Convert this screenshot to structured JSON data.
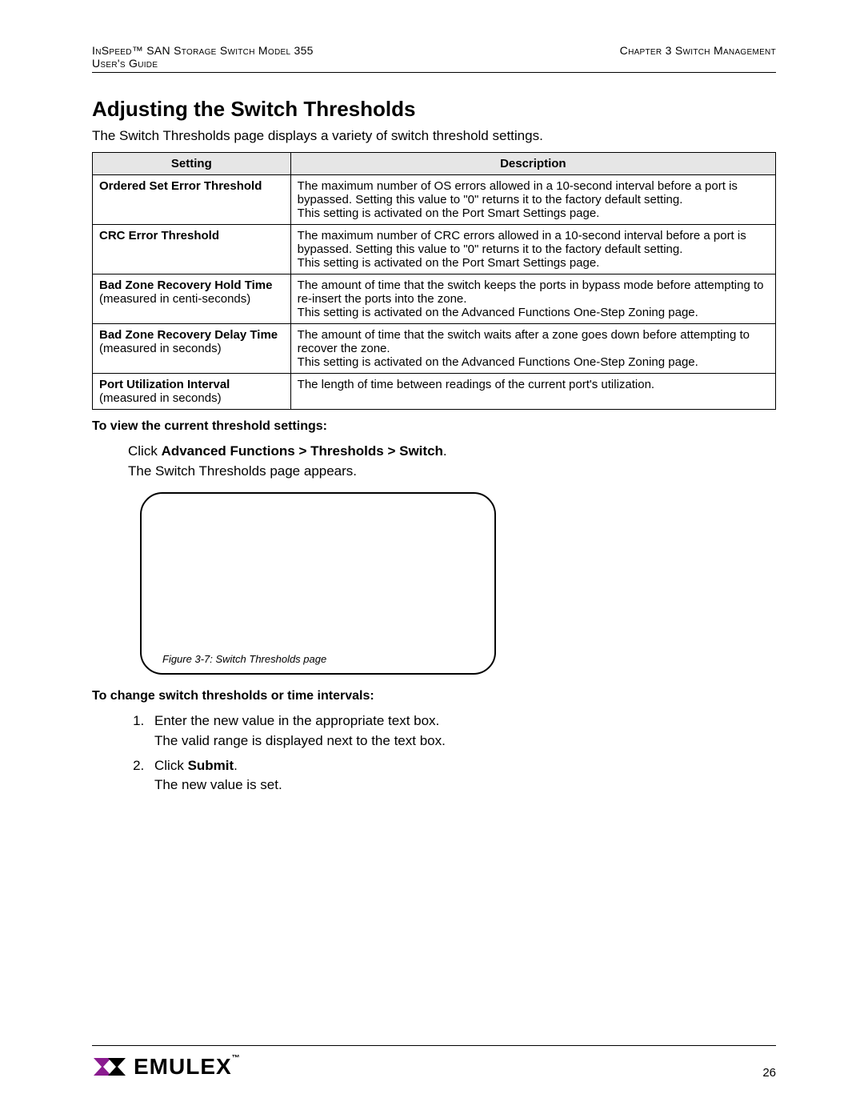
{
  "header": {
    "product_line1": "InSpeed™ SAN Storage Switch Model 355",
    "product_line2": "User's Guide",
    "chapter": "Chapter 3 Switch Management"
  },
  "title": "Adjusting the Switch Thresholds",
  "intro": "The Switch Thresholds page displays a variety of switch threshold settings.",
  "table": {
    "col_setting": "Setting",
    "col_desc": "Description",
    "rows": [
      {
        "name": "Ordered Set Error Threshold",
        "sub": "",
        "desc": "The maximum number of OS errors allowed in a 10-second interval before a port is bypassed. Setting this value to \"0\" returns it to the factory default setting.\nThis setting is activated on the Port Smart Settings page."
      },
      {
        "name": "CRC Error Threshold",
        "sub": "",
        "desc": "The maximum number of CRC errors allowed in a 10-second interval before a port is bypassed. Setting this value to \"0\" returns it to the factory default setting.\nThis setting is activated on the Port Smart Settings page."
      },
      {
        "name": "Bad Zone Recovery Hold Time",
        "sub": "(measured in centi-seconds)",
        "desc": "The amount of time that the switch keeps the ports in bypass mode before attempting to re-insert the ports into the zone.\nThis setting is activated on the Advanced Functions One-Step Zoning page."
      },
      {
        "name": "Bad Zone Recovery Delay Time",
        "sub": "(measured in seconds)",
        "desc": "The amount of time that the switch waits after a zone goes down before attempting to recover the zone.\nThis setting is activated on the Advanced Functions One-Step Zoning page."
      },
      {
        "name": "Port Utilization Interval",
        "sub": "(measured in seconds)",
        "desc": "The length of time between readings of the current port's utilization."
      }
    ]
  },
  "view_head": "To view the current threshold settings:",
  "view_click_pre": "Click ",
  "view_click_bold": "Advanced Functions > Thresholds > Switch",
  "view_click_post": ".",
  "view_after": "The Switch Thresholds page appears.",
  "fig_caption": "Figure 3-7: Switch Thresholds page",
  "change_head": "To change switch thresholds or time intervals:",
  "steps": [
    {
      "pre": "Enter the new value in the appropriate text box.",
      "sub": "The valid range is displayed next to the text box."
    },
    {
      "pre": "Click ",
      "bold": "Submit",
      "post": ".",
      "sub": "The new value is set."
    }
  ],
  "footer": {
    "logo_text": "EMULEX",
    "tm": "™",
    "page": "26"
  },
  "colors": {
    "text": "#000000",
    "table_header_bg": "#e6e6e6",
    "logo_accent": "#8a1b8f"
  }
}
